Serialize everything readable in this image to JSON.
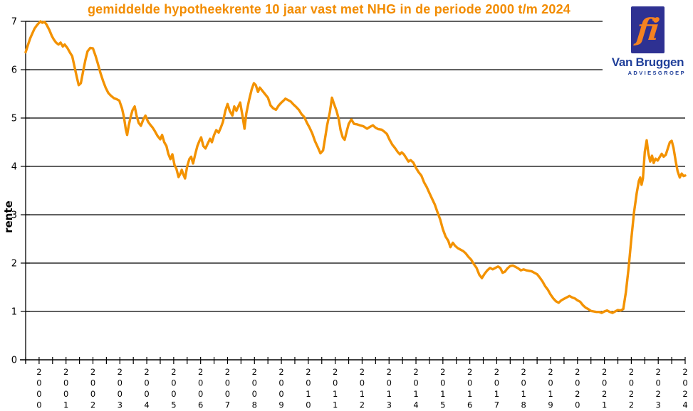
{
  "title": "gemiddelde hypotheekrente 10 jaar vast met NHG in de periode 2000 t/m 2024",
  "y_axis_label": "rente",
  "logo": {
    "symbol": "fi",
    "name": "Van Bruggen",
    "subtitle": "ADVIESGROEP"
  },
  "colors": {
    "line": "#F39200",
    "title": "#F28C00",
    "axis": "#000000",
    "grid": "#000000",
    "logo_blue": "#2E3192",
    "logo_text_blue": "#21409A",
    "logo_orange": "#F58220"
  },
  "chart_data": {
    "type": "line",
    "title": "gemiddelde hypotheekrente 10 jaar vast met NHG in de periode 2000 t/m 2024",
    "xlabel": "",
    "ylabel": "rente",
    "ylim": [
      0,
      7
    ],
    "xlim": [
      2000,
      2024.5
    ],
    "y_ticks": [
      0,
      1,
      2,
      3,
      4,
      5,
      6,
      7
    ],
    "categories": [
      "2000",
      "2001",
      "2002",
      "2003",
      "2004",
      "2005",
      "2006",
      "2007",
      "2008",
      "2009",
      "2010",
      "2011",
      "2012",
      "2013",
      "2014",
      "2015",
      "2016",
      "2017",
      "2018",
      "2019",
      "2020",
      "2021",
      "2022",
      "2023",
      "2024"
    ],
    "x_minor_tick_interval": 0.5,
    "grid": "horizontal",
    "legend": "none",
    "series": [
      {
        "name": "hypotheekrente 10 jaar vast met NHG",
        "points": [
          [
            2000.0,
            6.36
          ],
          [
            2000.08,
            6.5
          ],
          [
            2000.17,
            6.65
          ],
          [
            2000.25,
            6.75
          ],
          [
            2000.33,
            6.85
          ],
          [
            2000.42,
            6.92
          ],
          [
            2000.5,
            6.97
          ],
          [
            2000.55,
            7.0
          ],
          [
            2000.62,
            6.97
          ],
          [
            2000.7,
            6.99
          ],
          [
            2000.78,
            6.93
          ],
          [
            2000.88,
            6.82
          ],
          [
            2000.97,
            6.7
          ],
          [
            2001.05,
            6.62
          ],
          [
            2001.13,
            6.56
          ],
          [
            2001.22,
            6.52
          ],
          [
            2001.3,
            6.56
          ],
          [
            2001.38,
            6.48
          ],
          [
            2001.45,
            6.52
          ],
          [
            2001.55,
            6.45
          ],
          [
            2001.65,
            6.35
          ],
          [
            2001.73,
            6.28
          ],
          [
            2001.82,
            6.05
          ],
          [
            2001.9,
            5.85
          ],
          [
            2001.97,
            5.68
          ],
          [
            2002.05,
            5.72
          ],
          [
            2002.13,
            5.95
          ],
          [
            2002.22,
            6.2
          ],
          [
            2002.3,
            6.38
          ],
          [
            2002.4,
            6.45
          ],
          [
            2002.5,
            6.44
          ],
          [
            2002.6,
            6.28
          ],
          [
            2002.68,
            6.13
          ],
          [
            2002.78,
            5.93
          ],
          [
            2002.88,
            5.76
          ],
          [
            2002.97,
            5.63
          ],
          [
            2003.07,
            5.52
          ],
          [
            2003.17,
            5.46
          ],
          [
            2003.28,
            5.41
          ],
          [
            2003.38,
            5.39
          ],
          [
            2003.48,
            5.36
          ],
          [
            2003.58,
            5.2
          ],
          [
            2003.65,
            5.02
          ],
          [
            2003.72,
            4.77
          ],
          [
            2003.77,
            4.65
          ],
          [
            2003.83,
            4.85
          ],
          [
            2003.9,
            5.02
          ],
          [
            2003.97,
            5.16
          ],
          [
            2004.05,
            5.24
          ],
          [
            2004.12,
            5.05
          ],
          [
            2004.2,
            4.9
          ],
          [
            2004.28,
            4.84
          ],
          [
            2004.37,
            4.97
          ],
          [
            2004.45,
            5.05
          ],
          [
            2004.55,
            4.92
          ],
          [
            2004.63,
            4.86
          ],
          [
            2004.72,
            4.8
          ],
          [
            2004.8,
            4.73
          ],
          [
            2004.9,
            4.63
          ],
          [
            2005.0,
            4.56
          ],
          [
            2005.07,
            4.65
          ],
          [
            2005.15,
            4.5
          ],
          [
            2005.23,
            4.42
          ],
          [
            2005.3,
            4.26
          ],
          [
            2005.38,
            4.15
          ],
          [
            2005.45,
            4.25
          ],
          [
            2005.53,
            4.03
          ],
          [
            2005.6,
            3.95
          ],
          [
            2005.68,
            3.78
          ],
          [
            2005.75,
            3.85
          ],
          [
            2005.8,
            3.93
          ],
          [
            2005.86,
            3.83
          ],
          [
            2005.92,
            3.75
          ],
          [
            2006.0,
            4.0
          ],
          [
            2006.08,
            4.15
          ],
          [
            2006.15,
            4.2
          ],
          [
            2006.22,
            4.06
          ],
          [
            2006.3,
            4.25
          ],
          [
            2006.38,
            4.42
          ],
          [
            2006.45,
            4.52
          ],
          [
            2006.52,
            4.6
          ],
          [
            2006.6,
            4.42
          ],
          [
            2006.68,
            4.37
          ],
          [
            2006.77,
            4.48
          ],
          [
            2006.85,
            4.57
          ],
          [
            2006.92,
            4.5
          ],
          [
            2007.0,
            4.65
          ],
          [
            2007.08,
            4.75
          ],
          [
            2007.17,
            4.7
          ],
          [
            2007.25,
            4.8
          ],
          [
            2007.33,
            4.92
          ],
          [
            2007.42,
            5.15
          ],
          [
            2007.5,
            5.29
          ],
          [
            2007.58,
            5.15
          ],
          [
            2007.68,
            5.05
          ],
          [
            2007.75,
            5.24
          ],
          [
            2007.83,
            5.15
          ],
          [
            2007.9,
            5.24
          ],
          [
            2007.97,
            5.32
          ],
          [
            2008.05,
            5.06
          ],
          [
            2008.13,
            4.78
          ],
          [
            2008.2,
            5.1
          ],
          [
            2008.3,
            5.37
          ],
          [
            2008.4,
            5.6
          ],
          [
            2008.48,
            5.72
          ],
          [
            2008.55,
            5.68
          ],
          [
            2008.63,
            5.54
          ],
          [
            2008.7,
            5.63
          ],
          [
            2008.8,
            5.56
          ],
          [
            2008.9,
            5.49
          ],
          [
            2009.0,
            5.42
          ],
          [
            2009.1,
            5.26
          ],
          [
            2009.2,
            5.2
          ],
          [
            2009.3,
            5.17
          ],
          [
            2009.4,
            5.26
          ],
          [
            2009.5,
            5.32
          ],
          [
            2009.58,
            5.36
          ],
          [
            2009.65,
            5.4
          ],
          [
            2009.75,
            5.37
          ],
          [
            2009.85,
            5.34
          ],
          [
            2009.95,
            5.28
          ],
          [
            2010.05,
            5.23
          ],
          [
            2010.15,
            5.17
          ],
          [
            2010.25,
            5.08
          ],
          [
            2010.35,
            5.02
          ],
          [
            2010.45,
            4.9
          ],
          [
            2010.55,
            4.8
          ],
          [
            2010.65,
            4.68
          ],
          [
            2010.75,
            4.52
          ],
          [
            2010.85,
            4.4
          ],
          [
            2010.95,
            4.27
          ],
          [
            2011.05,
            4.33
          ],
          [
            2011.12,
            4.57
          ],
          [
            2011.2,
            4.85
          ],
          [
            2011.3,
            5.12
          ],
          [
            2011.38,
            5.42
          ],
          [
            2011.45,
            5.3
          ],
          [
            2011.55,
            5.15
          ],
          [
            2011.63,
            4.98
          ],
          [
            2011.7,
            4.75
          ],
          [
            2011.78,
            4.6
          ],
          [
            2011.85,
            4.55
          ],
          [
            2011.93,
            4.73
          ],
          [
            2012.0,
            4.88
          ],
          [
            2012.1,
            4.97
          ],
          [
            2012.2,
            4.88
          ],
          [
            2012.3,
            4.87
          ],
          [
            2012.42,
            4.85
          ],
          [
            2012.55,
            4.83
          ],
          [
            2012.68,
            4.78
          ],
          [
            2012.8,
            4.82
          ],
          [
            2012.9,
            4.85
          ],
          [
            2013.0,
            4.8
          ],
          [
            2013.1,
            4.77
          ],
          [
            2013.22,
            4.76
          ],
          [
            2013.32,
            4.72
          ],
          [
            2013.42,
            4.67
          ],
          [
            2013.52,
            4.55
          ],
          [
            2013.62,
            4.45
          ],
          [
            2013.72,
            4.38
          ],
          [
            2013.82,
            4.3
          ],
          [
            2013.9,
            4.25
          ],
          [
            2013.97,
            4.29
          ],
          [
            2014.05,
            4.25
          ],
          [
            2014.13,
            4.18
          ],
          [
            2014.22,
            4.1
          ],
          [
            2014.3,
            4.13
          ],
          [
            2014.4,
            4.08
          ],
          [
            2014.5,
            3.97
          ],
          [
            2014.6,
            3.88
          ],
          [
            2014.7,
            3.81
          ],
          [
            2014.8,
            3.67
          ],
          [
            2014.9,
            3.57
          ],
          [
            2015.0,
            3.45
          ],
          [
            2015.1,
            3.33
          ],
          [
            2015.2,
            3.21
          ],
          [
            2015.3,
            3.05
          ],
          [
            2015.4,
            2.9
          ],
          [
            2015.5,
            2.7
          ],
          [
            2015.6,
            2.55
          ],
          [
            2015.7,
            2.46
          ],
          [
            2015.78,
            2.33
          ],
          [
            2015.87,
            2.42
          ],
          [
            2015.95,
            2.36
          ],
          [
            2016.05,
            2.31
          ],
          [
            2016.15,
            2.28
          ],
          [
            2016.25,
            2.25
          ],
          [
            2016.35,
            2.2
          ],
          [
            2016.45,
            2.13
          ],
          [
            2016.55,
            2.07
          ],
          [
            2016.65,
            1.98
          ],
          [
            2016.75,
            1.9
          ],
          [
            2016.85,
            1.76
          ],
          [
            2016.95,
            1.69
          ],
          [
            2017.05,
            1.78
          ],
          [
            2017.15,
            1.85
          ],
          [
            2017.25,
            1.9
          ],
          [
            2017.35,
            1.87
          ],
          [
            2017.45,
            1.9
          ],
          [
            2017.55,
            1.93
          ],
          [
            2017.63,
            1.9
          ],
          [
            2017.72,
            1.8
          ],
          [
            2017.8,
            1.82
          ],
          [
            2017.9,
            1.89
          ],
          [
            2018.0,
            1.94
          ],
          [
            2018.1,
            1.95
          ],
          [
            2018.2,
            1.92
          ],
          [
            2018.3,
            1.89
          ],
          [
            2018.4,
            1.85
          ],
          [
            2018.5,
            1.87
          ],
          [
            2018.6,
            1.85
          ],
          [
            2018.7,
            1.84
          ],
          [
            2018.8,
            1.83
          ],
          [
            2018.9,
            1.8
          ],
          [
            2019.0,
            1.77
          ],
          [
            2019.1,
            1.7
          ],
          [
            2019.2,
            1.62
          ],
          [
            2019.3,
            1.52
          ],
          [
            2019.4,
            1.45
          ],
          [
            2019.5,
            1.35
          ],
          [
            2019.6,
            1.27
          ],
          [
            2019.7,
            1.21
          ],
          [
            2019.8,
            1.18
          ],
          [
            2019.9,
            1.23
          ],
          [
            2020.0,
            1.26
          ],
          [
            2020.1,
            1.29
          ],
          [
            2020.2,
            1.32
          ],
          [
            2020.3,
            1.29
          ],
          [
            2020.4,
            1.27
          ],
          [
            2020.5,
            1.23
          ],
          [
            2020.6,
            1.2
          ],
          [
            2020.7,
            1.13
          ],
          [
            2020.8,
            1.08
          ],
          [
            2020.9,
            1.05
          ],
          [
            2021.0,
            1.01
          ],
          [
            2021.1,
            1.0
          ],
          [
            2021.2,
            0.99
          ],
          [
            2021.3,
            0.99
          ],
          [
            2021.4,
            0.97
          ],
          [
            2021.5,
            1.0
          ],
          [
            2021.6,
            1.02
          ],
          [
            2021.7,
            0.99
          ],
          [
            2021.8,
            0.97
          ],
          [
            2021.9,
            1.0
          ],
          [
            2022.0,
            1.03
          ],
          [
            2022.1,
            1.02
          ],
          [
            2022.2,
            1.05
          ],
          [
            2022.3,
            1.4
          ],
          [
            2022.4,
            1.9
          ],
          [
            2022.5,
            2.5
          ],
          [
            2022.6,
            3.05
          ],
          [
            2022.7,
            3.45
          ],
          [
            2022.78,
            3.7
          ],
          [
            2022.83,
            3.77
          ],
          [
            2022.88,
            3.62
          ],
          [
            2022.93,
            3.75
          ],
          [
            2023.0,
            4.3
          ],
          [
            2023.07,
            4.54
          ],
          [
            2023.13,
            4.28
          ],
          [
            2023.2,
            4.1
          ],
          [
            2023.27,
            4.22
          ],
          [
            2023.33,
            4.07
          ],
          [
            2023.4,
            4.16
          ],
          [
            2023.48,
            4.12
          ],
          [
            2023.55,
            4.19
          ],
          [
            2023.63,
            4.26
          ],
          [
            2023.7,
            4.2
          ],
          [
            2023.78,
            4.24
          ],
          [
            2023.85,
            4.36
          ],
          [
            2023.93,
            4.5
          ],
          [
            2024.0,
            4.53
          ],
          [
            2024.07,
            4.38
          ],
          [
            2024.15,
            4.1
          ],
          [
            2024.22,
            3.9
          ],
          [
            2024.3,
            3.77
          ],
          [
            2024.37,
            3.85
          ],
          [
            2024.44,
            3.8
          ],
          [
            2024.5,
            3.81
          ]
        ]
      }
    ]
  }
}
